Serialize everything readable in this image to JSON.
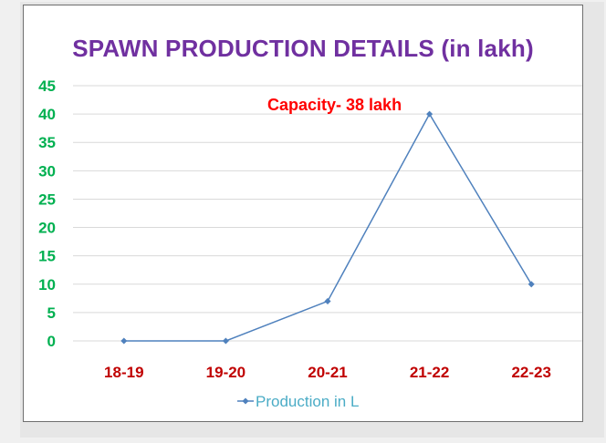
{
  "chart_data": {
    "type": "line",
    "title": "SPAWN PRODUCTION DETAILS (in lakh)",
    "categories": [
      "18-19",
      "19-20",
      "20-21",
      "21-22",
      "22-23"
    ],
    "series": [
      {
        "name": "Production in L",
        "values": [
          0,
          0,
          7,
          40,
          10
        ],
        "color": "#4f81bd"
      }
    ],
    "ylim": [
      0,
      45
    ],
    "yticks": [
      0,
      5,
      10,
      15,
      20,
      25,
      30,
      35,
      40,
      45
    ],
    "grid": true,
    "legend": "bottom",
    "annotation": "Capacity- 38 lakh",
    "colors": {
      "title": "#7030a0",
      "ytick": "#00b050",
      "xtick": "#c00000",
      "annotation": "#ff0000",
      "legend_text": "#4bacc6",
      "gridline": "#d9d9d9"
    }
  }
}
